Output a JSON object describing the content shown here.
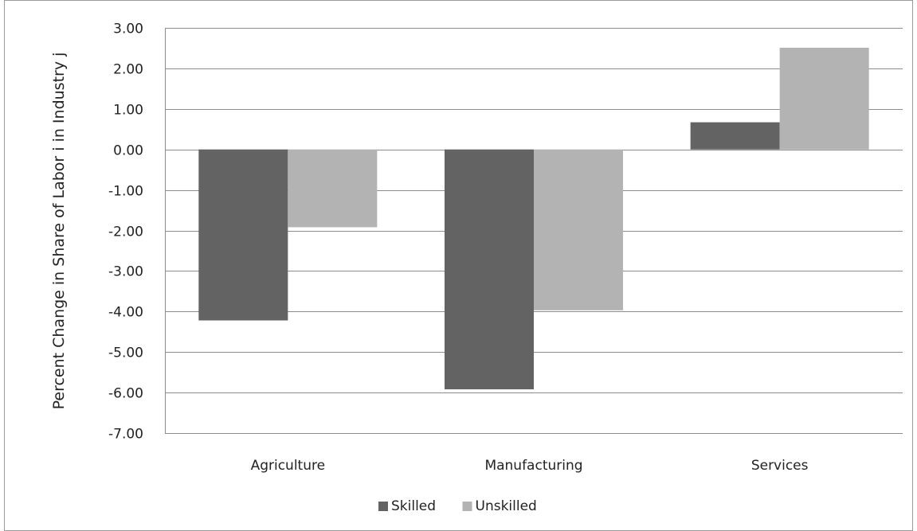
{
  "chart_data": {
    "type": "bar",
    "title": "",
    "xlabel": "",
    "ylabel": "Percent Change in Share of Labor i in Industry j",
    "categories": [
      "Agriculture",
      "Manufacturing",
      "Services"
    ],
    "series": [
      {
        "name": "Skilled",
        "values": [
          -4.22,
          -5.92,
          0.67
        ],
        "color": "#636363"
      },
      {
        "name": "Unskilled",
        "values": [
          -1.92,
          -3.97,
          2.51
        ],
        "color": "#b3b3b3"
      }
    ],
    "ylim": [
      -7.0,
      3.0
    ],
    "yticks": [
      "3.00",
      "2.00",
      "1.00",
      "0.00",
      "-1.00",
      "-2.00",
      "-3.00",
      "-4.00",
      "-5.00",
      "-6.00",
      "-7.00"
    ],
    "grid": true,
    "legend_position": "bottom-center"
  },
  "colors": {
    "gridline": "#8c8c8c",
    "frame": "#8c8c8c",
    "text": "#222222"
  }
}
